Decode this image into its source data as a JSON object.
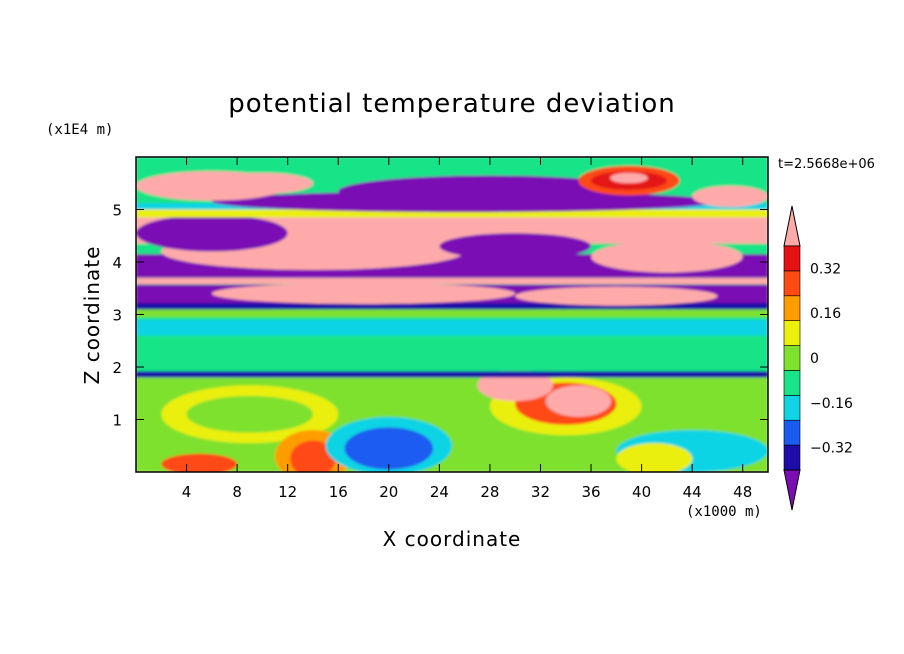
{
  "chart_data": {
    "type": "heatmap",
    "title": "potential temperature deviation",
    "time_label": "t=2.5668e+06",
    "xlabel": "X coordinate",
    "ylabel": "Z coordinate",
    "x_unit": "(x1000 m)",
    "y_unit": "(x1E4 m)",
    "xlim": [
      0,
      50
    ],
    "ylim": [
      0,
      6
    ],
    "x_ticks": [
      4,
      8,
      12,
      16,
      20,
      24,
      28,
      32,
      36,
      40,
      44,
      48
    ],
    "y_ticks": [
      1,
      2,
      3,
      4,
      5
    ],
    "colorbar": {
      "levels": [
        -0.4,
        -0.32,
        -0.24,
        -0.16,
        -0.08,
        0,
        0.08,
        0.16,
        0.24,
        0.32,
        0.4
      ],
      "tick_labels": [
        "0.32",
        "0.16",
        "0",
        "−0.16",
        "−0.32"
      ],
      "tick_values": [
        0.32,
        0.16,
        0,
        -0.16,
        -0.32
      ],
      "colors": [
        "#7a0eb4",
        "#1c0ca8",
        "#1a5cf0",
        "#10d4e4",
        "#18e487",
        "#7ee12e",
        "#eaef0c",
        "#ff9c00",
        "#ff4a13",
        "#e41212",
        "#ffaaaa"
      ],
      "extend": "both"
    },
    "field_description_regions": [
      {
        "z": [
          0.0,
          1.9
        ],
        "pattern": "warm-cold eddies"
      },
      {
        "z": [
          1.9,
          3.2
        ],
        "pattern": "near zero"
      },
      {
        "z": [
          3.2,
          5.9
        ],
        "pattern": "alternating strong layers"
      }
    ]
  }
}
